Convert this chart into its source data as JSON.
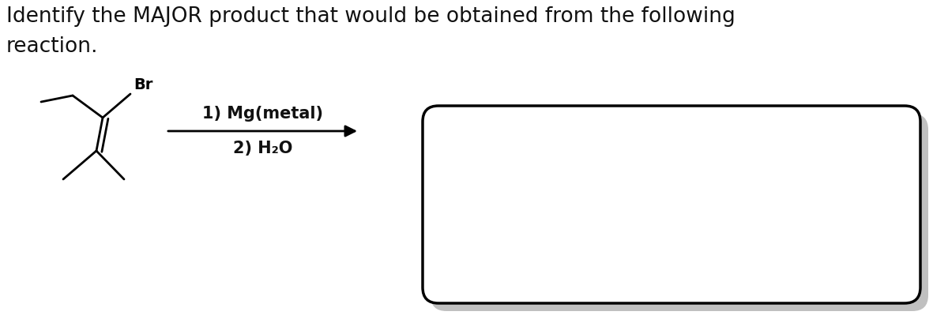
{
  "title_line1": "Identify the MAJOR product that would be obtained from the following",
  "title_line2": "reaction.",
  "title_fontsize": 19,
  "title_color": "#111111",
  "bg_color": "#ffffff",
  "reaction_step1": "1) Mg(metal)",
  "reaction_step2": "2) H₂O",
  "reaction_fontsize": 15,
  "molecule_color": "#000000",
  "arrow_color": "#000000",
  "box_color": "#000000",
  "box_bg": "#ffffff",
  "shadow_color": "#c0c0c0",
  "fig_width": 12.0,
  "fig_height": 4.04,
  "mol_lw": 2.0,
  "br_label_fontsize": 14,
  "br_label_bold": true
}
